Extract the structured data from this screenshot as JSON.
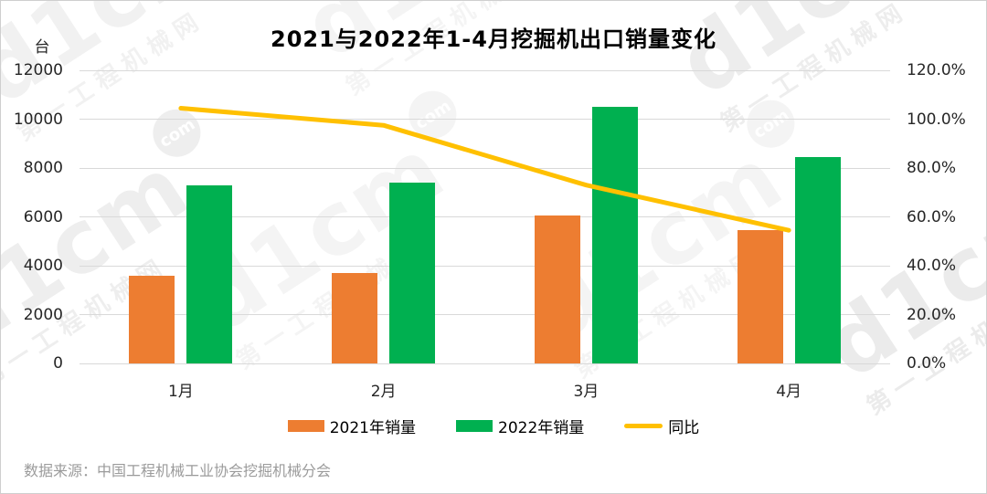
{
  "title": "2021与2022年1-4月挖掘机出口销量变化",
  "source_note": "数据来源：中国工程机械工业协会挖掘机械分会",
  "watermark": {
    "brand": "d1cm",
    "suffix": "com",
    "site_name": "第一工程机械网"
  },
  "colors": {
    "bar_2021": "#ED7D31",
    "bar_2022": "#00B050",
    "line_yoy": "#FFC000",
    "grid": "#D9D9D9",
    "axis_text": "#262626",
    "title_text": "#000000",
    "source_text": "#9B9B9B",
    "watermark_gray": "#9a9a9a"
  },
  "chart_data": {
    "type": "bar+line",
    "title": "2021与2022年1-4月挖掘机出口销量变化",
    "categories": [
      "1月",
      "2月",
      "3月",
      "4月"
    ],
    "series": [
      {
        "name": "2021年销量",
        "type": "bar",
        "axis": "left",
        "color": "#ED7D31",
        "values": [
          3600,
          3700,
          6050,
          5450
        ]
      },
      {
        "name": "2022年销量",
        "type": "bar",
        "axis": "left",
        "color": "#00B050",
        "values": [
          7300,
          7400,
          10500,
          8450
        ]
      },
      {
        "name": "同比",
        "type": "line",
        "axis": "right",
        "color": "#FFC000",
        "unit": "%",
        "values": [
          104.5,
          97.5,
          73.0,
          54.5
        ]
      }
    ],
    "left_axis": {
      "title": "台",
      "min": 0,
      "max": 12000,
      "step": 2000,
      "tick_labels": [
        "12000",
        "10000",
        "8000",
        "6000",
        "4000",
        "2000",
        "0"
      ]
    },
    "right_axis": {
      "min": 0,
      "max": 120,
      "step": 20,
      "unit": "%",
      "tick_labels": [
        "120.0%",
        "100.0%",
        "80.0%",
        "60.0%",
        "40.0%",
        "20.0%",
        "0.0%"
      ]
    },
    "grid": true,
    "legend_position": "bottom",
    "legend": [
      "2021年销量",
      "2022年销量",
      "同比"
    ]
  }
}
